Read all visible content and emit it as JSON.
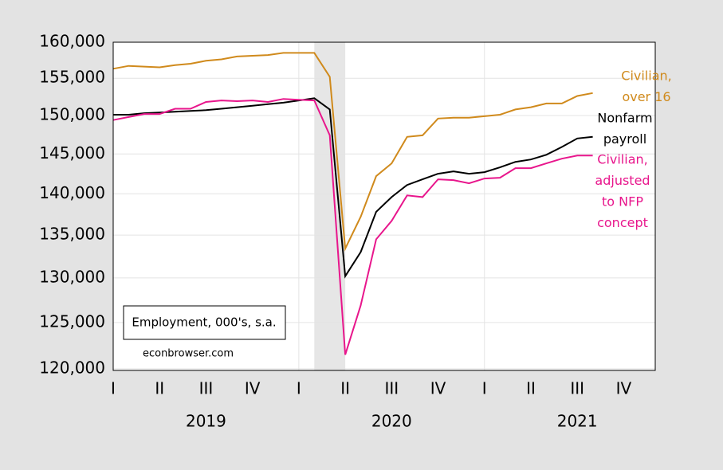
{
  "chart_data": {
    "type": "line",
    "annotation": "Employment, 000's, s.a.",
    "source": "econbrowser.com",
    "x": [
      2019.0,
      2019.0833,
      2019.1667,
      2019.25,
      2019.3333,
      2019.4167,
      2019.5,
      2019.5833,
      2019.6667,
      2019.75,
      2019.8333,
      2019.9167,
      2020.0,
      2020.0833,
      2020.1667,
      2020.25,
      2020.3333,
      2020.4167,
      2020.5,
      2020.5833,
      2020.6667,
      2020.75,
      2020.8333,
      2020.9167,
      2021.0,
      2021.0833,
      2021.1667,
      2021.25,
      2021.3333,
      2021.4167,
      2021.5,
      2021.5833
    ],
    "series": [
      {
        "label": [
          "Civilian,",
          "over 16"
        ],
        "color": "#d08a1c",
        "values": [
          156300,
          156700,
          156600,
          156500,
          156800,
          157000,
          157400,
          157600,
          158000,
          158100,
          158200,
          158500,
          158500,
          158500,
          155200,
          133400,
          137200,
          142200,
          143800,
          147200,
          147400,
          149600,
          149700,
          149700,
          149900,
          150100,
          150800,
          151100,
          151600,
          151600,
          152600,
          153000
        ]
      },
      {
        "label": [
          "Nonfarm",
          "payroll"
        ],
        "color": "#000000",
        "values": [
          150100,
          150100,
          150300,
          150400,
          150500,
          150600,
          150700,
          150900,
          151100,
          151300,
          151500,
          151700,
          152000,
          152300,
          150800,
          130200,
          133000,
          137800,
          139600,
          141100,
          141800,
          142500,
          142800,
          142500,
          142700,
          143300,
          144000,
          144300,
          144900,
          145900,
          147000,
          147200
        ]
      },
      {
        "label": [
          "Civilian,",
          "adjusted",
          "to NFP",
          "concept"
        ],
        "color": "#e8168c",
        "values": [
          149400,
          149800,
          150200,
          150200,
          150900,
          150900,
          151800,
          152000,
          151900,
          152000,
          151800,
          152200,
          152100,
          152000,
          147400,
          121500,
          126900,
          134500,
          136700,
          139800,
          139600,
          141800,
          141700,
          141300,
          141900,
          142000,
          143200,
          143200,
          143800,
          144400,
          144800,
          144800
        ]
      }
    ],
    "log_scale": true,
    "grid": true,
    "shading": [
      2020.0833,
      2020.25
    ],
    "xlim": [
      2019.0,
      2021.92
    ],
    "xticks": [
      {
        "value": 2019.0,
        "label": "I"
      },
      {
        "value": 2019.25,
        "label": "II"
      },
      {
        "value": 2019.5,
        "label": "III"
      },
      {
        "value": 2019.75,
        "label": "IV"
      },
      {
        "value": 2020.0,
        "label": "I"
      },
      {
        "value": 2020.25,
        "label": "II"
      },
      {
        "value": 2020.5,
        "label": "III"
      },
      {
        "value": 2020.75,
        "label": "IV"
      },
      {
        "value": 2021.0,
        "label": "I"
      },
      {
        "value": 2021.25,
        "label": "II"
      },
      {
        "value": 2021.5,
        "label": "III"
      },
      {
        "value": 2021.75,
        "label": "IV"
      }
    ],
    "year_labels": [
      {
        "value": 2019.5,
        "label": "2019"
      },
      {
        "value": 2020.5,
        "label": "2020"
      },
      {
        "value": 2021.5,
        "label": "2021"
      }
    ],
    "xgrid": [
      2020.0,
      2021.0
    ],
    "ylim": [
      120000,
      160000
    ],
    "yticks": [
      {
        "value": 120000,
        "label": "120,000"
      },
      {
        "value": 125000,
        "label": "125,000"
      },
      {
        "value": 130000,
        "label": "130,000"
      },
      {
        "value": 135000,
        "label": "135,000"
      },
      {
        "value": 140000,
        "label": "140,000"
      },
      {
        "value": 145000,
        "label": "145,000"
      },
      {
        "value": 150000,
        "label": "150,000"
      },
      {
        "value": 155000,
        "label": "155,000"
      },
      {
        "value": 160000,
        "label": "160,000"
      }
    ]
  }
}
